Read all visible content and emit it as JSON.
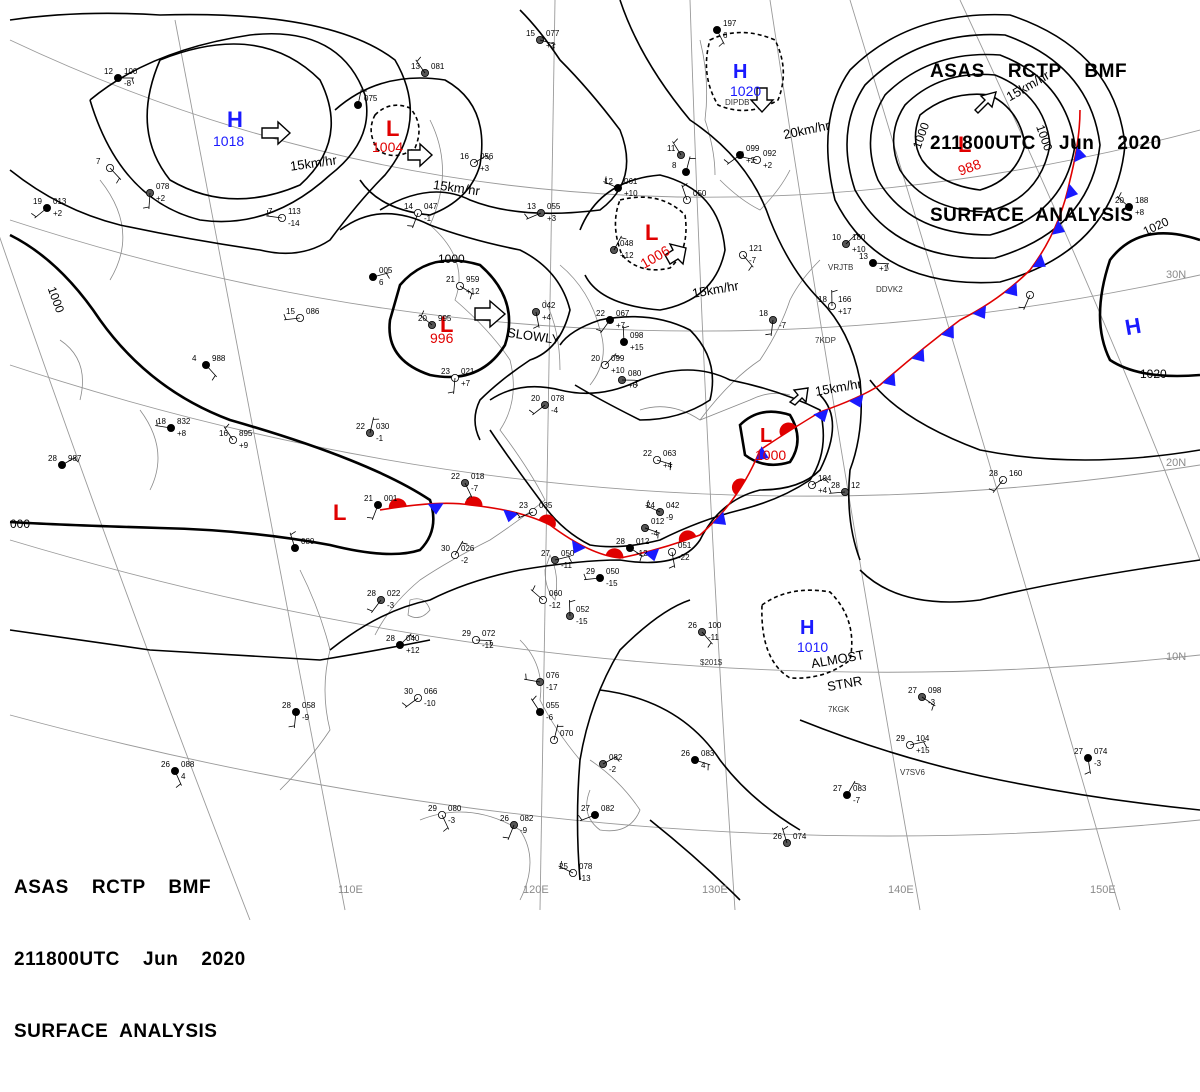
{
  "header": {
    "line1": "ASAS    RCTP    BMF",
    "line2": "211800UTC    Jun    2020",
    "line3": "SURFACE  ANALYSIS"
  },
  "colors": {
    "high": "#1a1aff",
    "low": "#e00000",
    "cold_front": "#1a1aff",
    "warm_front": "#e00000",
    "isobar": "#000000",
    "grid": "#9a9a9a",
    "coast": "#8a8a8a"
  },
  "map_layers": [
    "coastlines",
    "lat-lon-grid",
    "isobars",
    "stationary-front",
    "pressure-centers",
    "station-plots"
  ],
  "pressure_centers": [
    {
      "type": "H",
      "value": "1018"
    },
    {
      "type": "L",
      "value": "1004"
    },
    {
      "type": "H",
      "value": "1020"
    },
    {
      "type": "L",
      "value": "988"
    },
    {
      "type": "L",
      "value": "1006"
    },
    {
      "type": "L",
      "value": "996"
    },
    {
      "type": "H",
      "value": ""
    },
    {
      "type": "L",
      "value": "1000"
    },
    {
      "type": "L",
      "value": ""
    },
    {
      "type": "H",
      "value": "1010"
    }
  ],
  "isobar_labels": [
    "1000",
    "1000",
    "1000",
    "1000",
    "1020",
    "1020",
    "000"
  ],
  "motion_labels": [
    "15km/hr",
    "15km/hr",
    "15km/hr",
    "20km/hr",
    "15km/hr",
    "15km/hr",
    "SLOWLY",
    "ALMOST",
    "STNR"
  ],
  "grid_labels": {
    "lat": [
      "30N",
      "20N",
      "10N"
    ],
    "lon": [
      "110E",
      "120E",
      "130E",
      "140E",
      "150E"
    ]
  },
  "stations": [
    {
      "id": "",
      "t": "12",
      "p": "100",
      "tend": "-8"
    },
    {
      "id": "",
      "t": "7",
      "p": "",
      "tend": ""
    },
    {
      "id": "",
      "t": "",
      "p": "078",
      "tend": "+2"
    },
    {
      "id": "",
      "t": "19",
      "p": "013",
      "tend": "+2"
    },
    {
      "id": "",
      "t": "7",
      "p": "113",
      "tend": "-14"
    },
    {
      "id": "",
      "t": "13",
      "p": "081",
      "tend": ""
    },
    {
      "id": "",
      "t": "",
      "p": "075",
      "tend": ""
    },
    {
      "id": "",
      "t": "16",
      "p": "056",
      "tend": "+3"
    },
    {
      "id": "",
      "t": "15",
      "p": "077",
      "tend": "+2"
    },
    {
      "id": "",
      "t": "",
      "p": "197",
      "tend": "6"
    },
    {
      "id": "",
      "t": "14",
      "p": "047",
      "tend": "-1"
    },
    {
      "id": "",
      "t": "13",
      "p": "055",
      "tend": "+3"
    },
    {
      "id": "",
      "t": "12",
      "p": "061",
      "tend": "+10"
    },
    {
      "id": "",
      "t": "",
      "p": "050",
      "tend": ""
    },
    {
      "id": "",
      "t": "",
      "p": "048",
      "tend": "+12"
    },
    {
      "id": "",
      "t": "",
      "p": "005",
      "tend": "6"
    },
    {
      "id": "",
      "t": "21",
      "p": "959",
      "tend": "+12"
    },
    {
      "id": "",
      "t": "",
      "p": "042",
      "tend": "+4"
    },
    {
      "id": "",
      "t": "22",
      "p": "067",
      "tend": "+7"
    },
    {
      "id": "",
      "t": "15",
      "p": "086",
      "tend": ""
    },
    {
      "id": "",
      "t": "20",
      "p": "995",
      "tend": ""
    },
    {
      "id": "",
      "t": "",
      "p": "098",
      "tend": "+15"
    },
    {
      "id": "",
      "t": "20",
      "p": "099",
      "tend": "+10"
    },
    {
      "id": "",
      "t": "",
      "p": "080",
      "tend": "+6"
    },
    {
      "id": "",
      "t": "4",
      "p": "988",
      "tend": ""
    },
    {
      "id": "",
      "t": "23",
      "p": "021",
      "tend": "+7"
    },
    {
      "id": "",
      "t": "20",
      "p": "078",
      "tend": "-4"
    },
    {
      "id": "",
      "t": "18",
      "p": "832",
      "tend": "+8"
    },
    {
      "id": "",
      "t": "16",
      "p": "895",
      "tend": "+9"
    },
    {
      "id": "",
      "t": "22",
      "p": "030",
      "tend": "-1"
    },
    {
      "id": "",
      "t": "28",
      "p": "987",
      "tend": ""
    },
    {
      "id": "",
      "t": "22",
      "p": "063",
      "tend": "+4"
    },
    {
      "id": "",
      "t": "22",
      "p": "018",
      "tend": "-7"
    },
    {
      "id": "",
      "t": "21",
      "p": "001",
      "tend": ""
    },
    {
      "id": "",
      "t": "23",
      "p": "035",
      "tend": ""
    },
    {
      "id": "",
      "t": "24",
      "p": "042",
      "tend": "-9"
    },
    {
      "id": "",
      "t": "",
      "p": "080",
      "tend": ""
    },
    {
      "id": "",
      "t": "30",
      "p": "026",
      "tend": "-2"
    },
    {
      "id": "",
      "t": "27",
      "p": "050",
      "tend": "-11"
    },
    {
      "id": "",
      "t": "28",
      "p": "012",
      "tend": "-12"
    },
    {
      "id": "",
      "t": "",
      "p": "051",
      "tend": "-22"
    },
    {
      "id": "",
      "t": "28",
      "p": "022",
      "tend": "-3"
    },
    {
      "id": "",
      "t": "29",
      "p": "050",
      "tend": "-15"
    },
    {
      "id": "",
      "t": "",
      "p": "060",
      "tend": "-12"
    },
    {
      "id": "",
      "t": "",
      "p": "052",
      "tend": "-15"
    },
    {
      "id": "",
      "t": "28",
      "p": "040",
      "tend": "+12"
    },
    {
      "id": "",
      "t": "29",
      "p": "072",
      "tend": "-12"
    },
    {
      "id": "",
      "t": "26",
      "p": "100",
      "tend": "-11"
    },
    {
      "id": "",
      "t": "28",
      "p": "058",
      "tend": "-9"
    },
    {
      "id": "",
      "t": "30",
      "p": "066",
      "tend": "-10"
    },
    {
      "id": "",
      "t": "",
      "p": "076",
      "tend": "-17"
    },
    {
      "id": "",
      "t": "",
      "p": "055",
      "tend": "-6"
    },
    {
      "id": "",
      "t": "",
      "p": "070",
      "tend": ""
    },
    {
      "id": "",
      "t": "",
      "p": "082",
      "tend": "-2"
    },
    {
      "id": "",
      "t": "26",
      "p": "083",
      "tend": "4"
    },
    {
      "id": "",
      "t": "29",
      "p": "080",
      "tend": "-3"
    },
    {
      "id": "",
      "t": "26",
      "p": "082",
      "tend": "-9"
    },
    {
      "id": "",
      "t": "27",
      "p": "082",
      "tend": ""
    },
    {
      "id": "",
      "t": "25",
      "p": "078",
      "tend": "-13"
    },
    {
      "id": "",
      "t": "26",
      "p": "074",
      "tend": ""
    },
    {
      "id": "",
      "t": "27",
      "p": "083",
      "tend": "-7"
    },
    {
      "id": "",
      "t": "29",
      "p": "104",
      "tend": "+15"
    },
    {
      "id": "",
      "t": "27",
      "p": "098",
      "tend": "-3"
    },
    {
      "id": "",
      "t": "27",
      "p": "074",
      "tend": "-3"
    },
    {
      "id": "",
      "t": "28",
      "p": "160",
      "tend": ""
    },
    {
      "id": "",
      "t": "28",
      "p": "12",
      "tend": ""
    },
    {
      "id": "",
      "t": "20",
      "p": "188",
      "tend": "+8"
    },
    {
      "id": "",
      "t": "18",
      "p": "166",
      "tend": "+17"
    },
    {
      "id": "",
      "t": "10",
      "p": "180",
      "tend": "+10"
    },
    {
      "id": "",
      "t": "13",
      "p": "",
      "tend": "+1"
    },
    {
      "id": "",
      "t": "",
      "p": "121",
      "tend": "-7"
    },
    {
      "id": "",
      "t": "18",
      "p": "",
      "tend": "-7"
    },
    {
      "id": "",
      "t": "",
      "p": "099",
      "tend": "+2"
    },
    {
      "id": "",
      "t": "",
      "p": "092",
      "tend": "+2"
    },
    {
      "id": "",
      "t": "11",
      "p": "",
      "tend": ""
    },
    {
      "id": "",
      "t": "8",
      "p": "",
      "tend": ""
    },
    {
      "id": "",
      "t": "",
      "p": "104",
      "tend": "+4"
    },
    {
      "id": "",
      "t": "",
      "p": "012",
      "tend": "-4"
    },
    {
      "id": "",
      "t": "26",
      "p": "088",
      "tend": "4"
    },
    {
      "id": "",
      "t": "",
      "p": "",
      "tend": ""
    }
  ],
  "ship_ids": [
    "VRJTB",
    "DDVK2",
    "7KDP",
    "7KGK",
    "V7SV6",
    "$201$",
    "DIPDB"
  ]
}
